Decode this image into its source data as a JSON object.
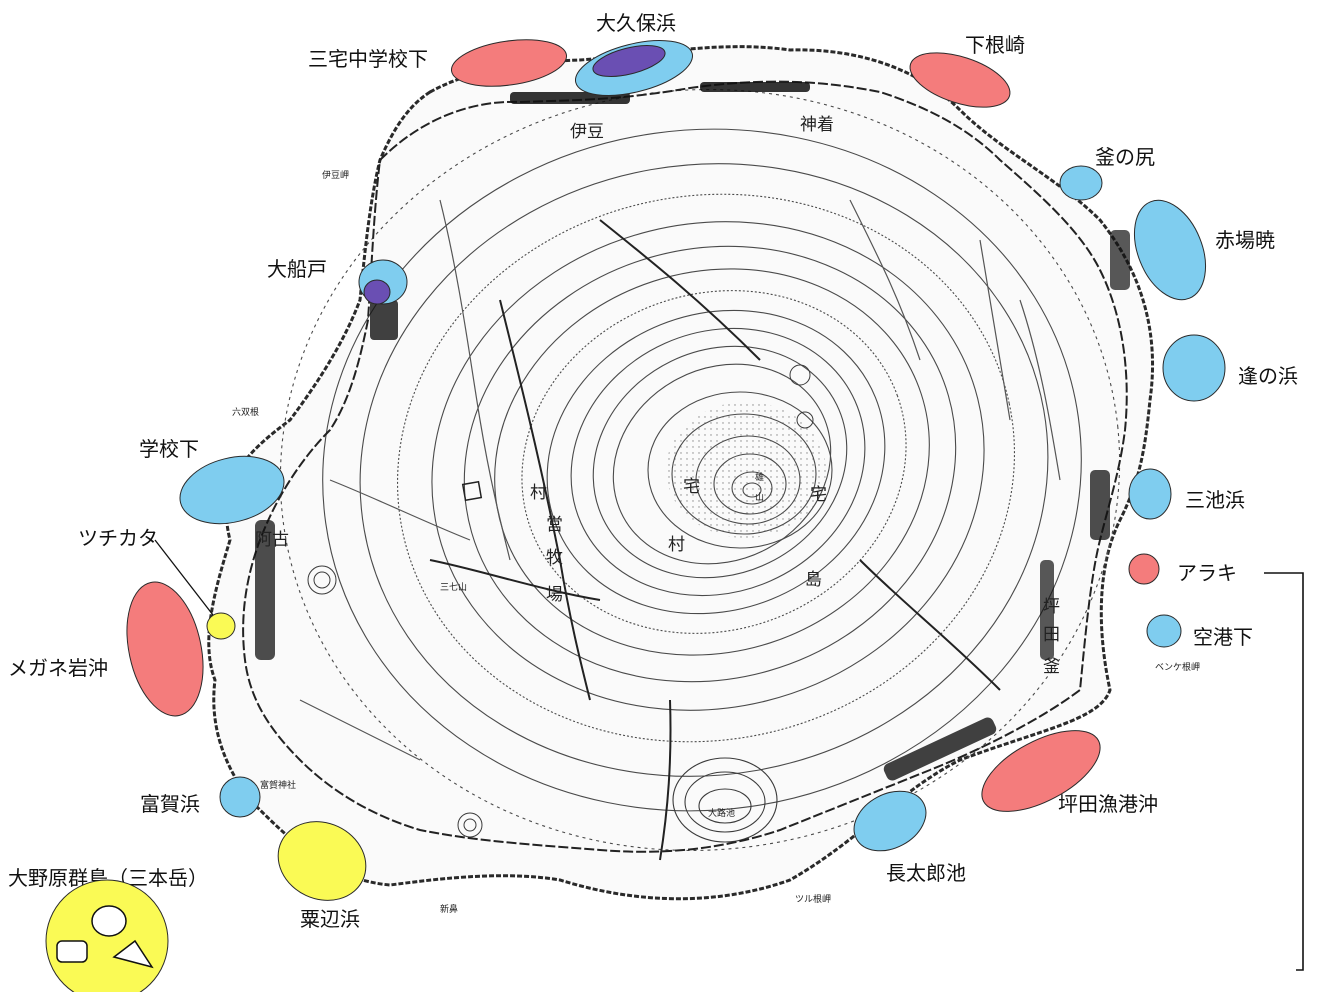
{
  "colors": {
    "red": "#f47c7c",
    "blue": "#7fcdef",
    "purple": "#6a4fb3",
    "yellow": "#fafa55",
    "outline": "#2a2a2a"
  },
  "labels": {
    "okubohama": "大久保浜",
    "miyake_jhs": "三宅中学校下",
    "shimonezaki": "下根崎",
    "kamanoshiri": "釜の尻",
    "akabakkyo": "赤場暁",
    "ofunato": "大船戸",
    "ainohama": "逢の浜",
    "gakkoshita": "学校下",
    "miikehama": "三池浜",
    "tsuchikata": "ツチカタ",
    "araki": "アラキ",
    "megane": "メガネ岩沖",
    "kukoshita": "空港下",
    "tsubota": "坪田漁港沖",
    "togahama": "富賀浜",
    "chotaroike": "長太郎池",
    "awabehama": "粟辺浜",
    "onohara": "大野原群島（三本岳）"
  },
  "map_text": {
    "t1": "宅",
    "t2": "雄",
    "t3": "山",
    "t4": "宅",
    "t5": "村",
    "t6": "島",
    "t7": "村",
    "t8": "営",
    "t9": "牧",
    "t10": "場",
    "t11": "神着",
    "t12": "坪",
    "t13": "田",
    "t14": "伊豆",
    "t15": "阿古",
    "t16": "大路池",
    "t17": "ツル根岬",
    "t18": "ベンケ根岬",
    "t19": "伊豆岬",
    "t20": "六双根",
    "t21": "新鼻",
    "t22": "三七山",
    "t23": "富賀神社",
    "t24": "釜"
  }
}
